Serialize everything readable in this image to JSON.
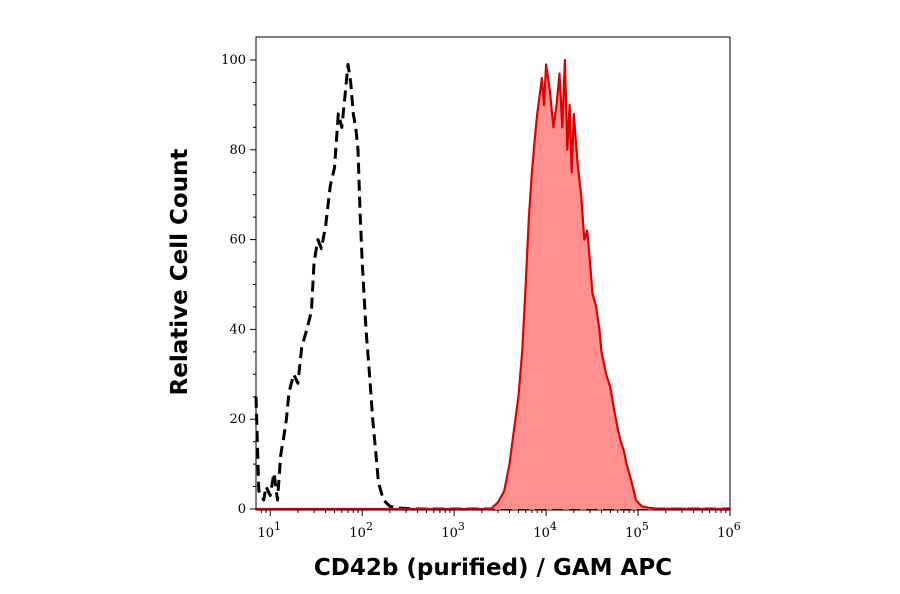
{
  "chart_data": {
    "type": "area",
    "title": "",
    "xlabel": "CD42b (purified) / GAM APC",
    "ylabel": "Relative Cell Count",
    "x_scale": "log",
    "xlim": [
      7,
      1000000
    ],
    "ylim": [
      0,
      100
    ],
    "x_ticks": [
      {
        "value": 10,
        "base": "10",
        "exp": "1"
      },
      {
        "value": 100,
        "base": "10",
        "exp": "2"
      },
      {
        "value": 1000,
        "base": "10",
        "exp": "3"
      },
      {
        "value": 10000,
        "base": "10",
        "exp": "4"
      },
      {
        "value": 100000,
        "base": "10",
        "exp": "5"
      },
      {
        "value": 1000000,
        "base": "10",
        "exp": "6"
      }
    ],
    "y_ticks": [
      {
        "value": 0,
        "label": "0"
      },
      {
        "value": 20,
        "label": "20"
      },
      {
        "value": 40,
        "label": "40"
      },
      {
        "value": 60,
        "label": "60"
      },
      {
        "value": 80,
        "label": "80"
      },
      {
        "value": 100,
        "label": "100"
      }
    ],
    "grid": false,
    "legend": "none",
    "series": [
      {
        "style": "dashed-line",
        "color": "#000000",
        "x": [
          7,
          7.5,
          8,
          8.5,
          9,
          10,
          11,
          12,
          13,
          14,
          15,
          16,
          18,
          20,
          22,
          25,
          28,
          30,
          33,
          36,
          40,
          45,
          50,
          55,
          60,
          65,
          70,
          75,
          80,
          85,
          90,
          95,
          100,
          110,
          120,
          130,
          140,
          150,
          170,
          200,
          250,
          400,
          1000000
        ],
        "y": [
          25,
          4,
          3,
          2,
          5,
          3,
          8,
          2,
          12,
          16,
          20,
          26,
          30,
          28,
          36,
          40,
          44,
          55,
          60,
          58,
          63,
          72,
          76,
          88,
          85,
          92,
          99,
          95,
          88,
          85,
          80,
          66,
          55,
          40,
          30,
          20,
          13,
          6,
          2,
          0.6,
          0.2,
          0,
          0
        ]
      },
      {
        "style": "filled-area",
        "color": "#dd0000",
        "fill": "#ff9090",
        "x": [
          7,
          2500,
          3000,
          3500,
          4000,
          4500,
          5000,
          5500,
          6000,
          6500,
          7000,
          7500,
          8000,
          8500,
          9000,
          9500,
          10000,
          11000,
          12000,
          13000,
          14000,
          15000,
          16000,
          17000,
          18000,
          19000,
          20000,
          22000,
          24000,
          26000,
          28000,
          30000,
          32000,
          35000,
          38000,
          40000,
          45000,
          50000,
          55000,
          60000,
          65000,
          70000,
          75000,
          80000,
          85000,
          90000,
          95000,
          100000,
          110000,
          130000,
          160000,
          1000000
        ],
        "y": [
          0,
          0,
          1.5,
          4,
          10,
          18,
          25,
          35,
          50,
          65,
          75,
          82,
          88,
          92,
          96,
          90,
          99,
          93,
          85,
          90,
          97,
          85,
          100,
          80,
          90,
          75,
          88,
          77,
          70,
          60,
          62,
          55,
          48,
          45,
          40,
          35,
          30,
          27,
          22,
          18,
          15,
          13,
          10,
          8,
          6,
          4,
          2,
          1.5,
          0.6,
          0.3,
          0.1,
          0
        ]
      }
    ]
  }
}
